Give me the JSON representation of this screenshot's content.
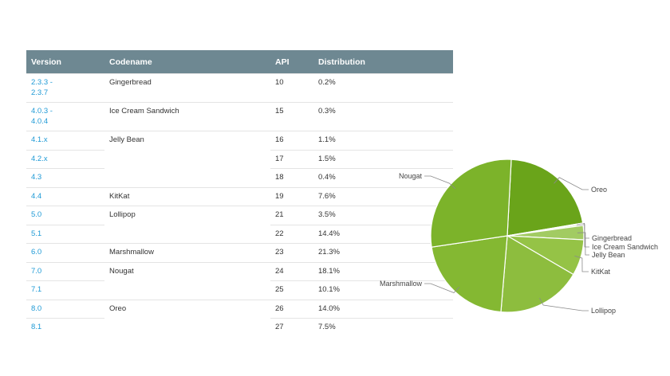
{
  "table": {
    "headers": [
      "Version",
      "Codename",
      "API",
      "Distribution"
    ],
    "rows": [
      {
        "version": "2.3.3 -\n2.3.7",
        "codename": "Gingerbread",
        "api": "10",
        "dist": "0.2%",
        "tall": true
      },
      {
        "version": "4.0.3 -\n4.0.4",
        "codename": "Ice Cream Sandwich",
        "api": "15",
        "dist": "0.3%",
        "tall": true
      },
      {
        "version": "4.1.x",
        "codename": "Jelly Bean",
        "api": "16",
        "dist": "1.1%"
      },
      {
        "version": "4.2.x",
        "codename": "",
        "api": "17",
        "dist": "1.5%"
      },
      {
        "version": "4.3",
        "codename": "",
        "api": "18",
        "dist": "0.4%"
      },
      {
        "version": "4.4",
        "codename": "KitKat",
        "api": "19",
        "dist": "7.6%"
      },
      {
        "version": "5.0",
        "codename": "Lollipop",
        "api": "21",
        "dist": "3.5%"
      },
      {
        "version": "5.1",
        "codename": "",
        "api": "22",
        "dist": "14.4%"
      },
      {
        "version": "6.0",
        "codename": "Marshmallow",
        "api": "23",
        "dist": "21.3%"
      },
      {
        "version": "7.0",
        "codename": "Nougat",
        "api": "24",
        "dist": "18.1%"
      },
      {
        "version": "7.1",
        "codename": "",
        "api": "25",
        "dist": "10.1%"
      },
      {
        "version": "8.0",
        "codename": "Oreo",
        "api": "26",
        "dist": "14.0%"
      },
      {
        "version": "8.1",
        "codename": "",
        "api": "27",
        "dist": "7.5%"
      }
    ]
  },
  "chart_data": {
    "type": "pie",
    "labels": [
      "Oreo",
      "Gingerbread",
      "Ice Cream Sandwich",
      "Jelly Bean",
      "KitKat",
      "Lollipop",
      "Marshmallow",
      "Nougat"
    ],
    "values": [
      21.5,
      0.2,
      0.3,
      3.0,
      7.6,
      17.9,
      21.3,
      28.2
    ],
    "colors": [
      "#6aa41a",
      "#a4cc6a",
      "#b4d682",
      "#a2cb62",
      "#95c346",
      "#8dbd3e",
      "#84b832",
      "#7cb32a"
    ],
    "title": "",
    "legend": "callout-labels"
  }
}
